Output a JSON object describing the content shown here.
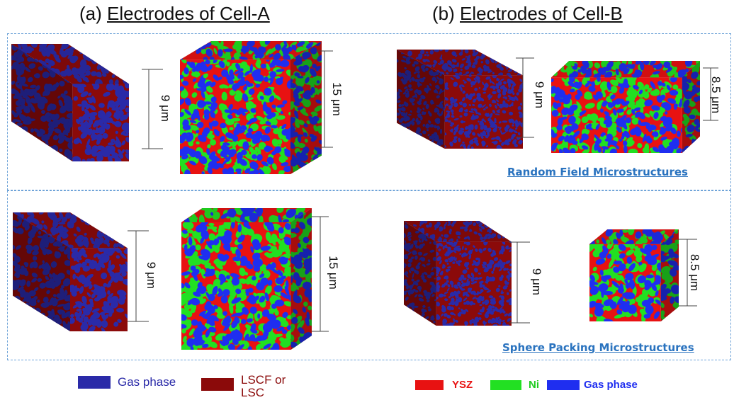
{
  "titles": {
    "a_prefix": "(a) ",
    "a_main": "Electrodes of Cell-A",
    "b_prefix": "(b) ",
    "b_main": "Electrodes of Cell-B"
  },
  "captions": {
    "random": "Random Field Microstructures",
    "sphere": "Sphere Packing Microstructures"
  },
  "dimensions": {
    "a_cathode_small": "9 μm",
    "a_cathode_large": "15 μm",
    "b_electrolyte": "9 μm",
    "b_anode": "8.5 μm"
  },
  "legend_a": {
    "gas_phase": "Gas phase",
    "lscf_line1": "LSCF or",
    "lscf_line2": "LSC"
  },
  "legend_b": {
    "ysz": "YSZ",
    "ni": "Ni",
    "gas_phase": "Gas phase"
  },
  "colors": {
    "gas_phase_a": "#2a2aa8",
    "lscf": "#8b0a0a",
    "ysz": "#e81212",
    "ni": "#22e022",
    "gas_phase_b": "#1f2ef0",
    "dim_line": "#444444",
    "caption": "#2a73bf",
    "frame": "#6ea3d8"
  }
}
